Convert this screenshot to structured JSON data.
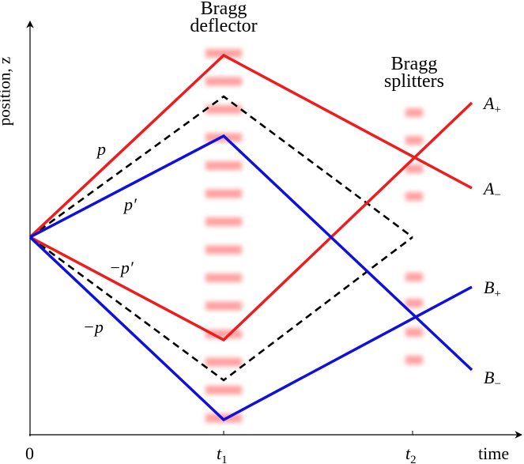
{
  "axes": {
    "y_label": "position, z",
    "x_label": "time",
    "origin_label": "0",
    "t1_label": "t",
    "t1_sub": "1",
    "t2_label": "t",
    "t2_sub": "2"
  },
  "annotations": {
    "deflector_line1": "Bragg",
    "deflector_line2": "deflector",
    "splitters_line1": "Bragg",
    "splitters_line2": "splitters"
  },
  "momenta": {
    "p": "p",
    "p_prime": "p′",
    "neg_p_prime": "−p′",
    "neg_p": "−p"
  },
  "outputs": {
    "a_plus": {
      "base": "A",
      "sub": "+"
    },
    "a_minus": {
      "base": "A",
      "sub": "−"
    },
    "b_plus": {
      "base": "B",
      "sub": "+"
    },
    "b_minus": {
      "base": "B",
      "sub": "−"
    }
  },
  "colors": {
    "red_path": "#ee1c1c",
    "blue_path": "#1010dd",
    "dashed_path": "#000000",
    "bragg_pulse": "#ff8a8a"
  }
}
